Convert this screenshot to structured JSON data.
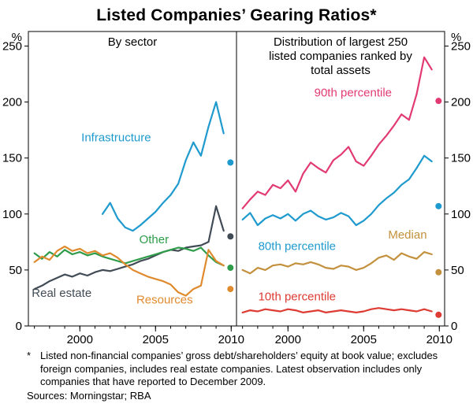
{
  "title": "Listed Companies’ Gearing Ratios*",
  "footnote_star": "*",
  "footnote_text": "Listed non-financial companies’ gross debt/shareholders’ equity at book value; excludes foreign companies, includes real estate companies. Latest observation includes only companies that have reported to December 2009.",
  "sources": "Sources: Morningstar; RBA",
  "chart_data": {
    "type": "line",
    "y_unit": "%",
    "ylim": [
      0,
      263
    ],
    "y_ticks": [
      0,
      50,
      100,
      150,
      200,
      250
    ],
    "x_range": [
      1996.6,
      2010.35
    ],
    "x_ticks_major": [
      2000,
      2005,
      2010
    ],
    "x_ticks_minor_start": 1997,
    "x_ticks_minor_end": 2010,
    "latest_x": 2009.95,
    "grid": false,
    "panels": [
      {
        "title_lines": [
          "By sector"
        ],
        "series": [
          {
            "name": "Real estate",
            "color": "#414b55",
            "x_start": 1997,
            "x_step": 0.5,
            "values": [
              33,
              36,
              40,
              43,
              46,
              44,
              47,
              45,
              48,
              50,
              49,
              51,
              53,
              55,
              58,
              60,
              63,
              66,
              68,
              67,
              70,
              71,
              72,
              75,
              107,
              85
            ],
            "latest": 80
          },
          {
            "name": "Other",
            "color": "#2e9c49",
            "x_start": 1997,
            "x_step": 0.5,
            "values": [
              65,
              60,
              66,
              62,
              68,
              64,
              66,
              63,
              65,
              62,
              60,
              58,
              56,
              58,
              60,
              62,
              64,
              66,
              68,
              70,
              69,
              67,
              70,
              63,
              57,
              54
            ],
            "latest": 52
          },
          {
            "name": "Resources",
            "color": "#e08a2e",
            "x_start": 1997,
            "x_step": 0.5,
            "values": [
              57,
              62,
              59,
              67,
              71,
              67,
              69,
              65,
              67,
              63,
              65,
              61,
              55,
              50,
              47,
              44,
              42,
              40,
              37,
              30,
              27,
              33,
              36,
              68,
              58,
              54
            ],
            "latest": 33
          },
          {
            "name": "Infrastructure",
            "color": "#1f9ace",
            "x_start": 2001.5,
            "x_step": 0.5,
            "values": [
              100,
              110,
              96,
              88,
              85,
              90,
              96,
              102,
              110,
              117,
              127,
              148,
              164,
              152,
              178,
              200,
              172
            ],
            "latest": 146
          }
        ],
        "labels": [
          {
            "text": "Infrastructure",
            "x": 2002.4,
            "y": 165,
            "color": "#1f9ace"
          },
          {
            "text": "Other",
            "x": 2004.9,
            "y": 74,
            "color": "#2e9c49"
          },
          {
            "text": "Real estate",
            "x": 1998.8,
            "y": 26,
            "color": "#414b55"
          },
          {
            "text": "Resources",
            "x": 2005.6,
            "y": 20,
            "color": "#e08a2e"
          }
        ]
      },
      {
        "title_lines": [
          "Distribution of largest 250",
          "listed companies ranked by",
          "total assets"
        ],
        "series": [
          {
            "name": "10th percentile",
            "color": "#dd3b33",
            "x_start": 1997,
            "x_step": 0.5,
            "values": [
              12,
              14,
              13,
              15,
              14,
              13,
              15,
              14,
              12,
              13,
              14,
              12,
              13,
              14,
              13,
              12,
              13,
              15,
              16,
              15,
              14,
              15,
              14,
              13,
              15,
              13
            ],
            "latest": 10
          },
          {
            "name": "Median",
            "color": "#c3913d",
            "x_start": 1997,
            "x_step": 0.5,
            "values": [
              50,
              47,
              52,
              50,
              54,
              55,
              53,
              56,
              55,
              57,
              55,
              52,
              51,
              54,
              53,
              50,
              52,
              56,
              61,
              63,
              59,
              65,
              62,
              60,
              66,
              64
            ],
            "latest": 48
          },
          {
            "name": "80th percentile",
            "color": "#1f9ace",
            "x_start": 1997,
            "x_step": 0.5,
            "values": [
              95,
              101,
              90,
              96,
              99,
              96,
              100,
              94,
              100,
              103,
              98,
              95,
              97,
              101,
              98,
              90,
              94,
              100,
              108,
              114,
              119,
              126,
              131,
              141,
              152,
              147
            ],
            "latest": 107
          },
          {
            "name": "90th percentile",
            "color": "#e23a72",
            "x_start": 1997,
            "x_step": 0.5,
            "values": [
              105,
              113,
              120,
              117,
              126,
              123,
              130,
              120,
              136,
              146,
              141,
              137,
              148,
              153,
              160,
              147,
              143,
              152,
              162,
              170,
              179,
              189,
              184,
              207,
              240,
              229
            ],
            "latest": 201
          }
        ],
        "labels": [
          {
            "text": "90th percentile",
            "x": 2004.3,
            "y": 205,
            "color": "#e23a72"
          },
          {
            "text": "80th percentile",
            "x": 2000.6,
            "y": 68,
            "color": "#1f9ace"
          },
          {
            "text": "Median",
            "x": 2007.9,
            "y": 78,
            "color": "#c3913d"
          },
          {
            "text": "10th percentile",
            "x": 2000.6,
            "y": 23,
            "color": "#dd3b33"
          }
        ]
      }
    ]
  }
}
